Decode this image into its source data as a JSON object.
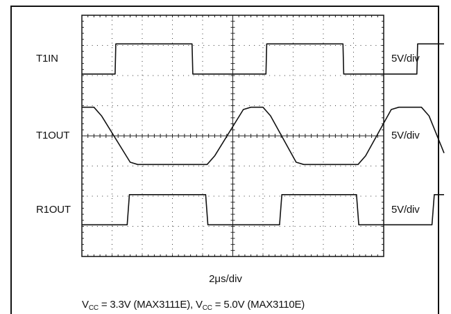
{
  "chart_data": {
    "type": "line",
    "title": "",
    "xlabel": "2μs/div",
    "ylabel": "",
    "grid": true,
    "x_divisions": 10,
    "y_divisions": 8,
    "x_unit": "μs",
    "us_per_div": 2,
    "channels": [
      {
        "name": "T1IN",
        "scale": "5V/div",
        "low_div": 6.05,
        "high_div": 7.05,
        "points": [
          [
            0,
            0
          ],
          [
            2.2,
            0
          ],
          [
            2.25,
            1
          ],
          [
            7.3,
            1
          ],
          [
            7.35,
            0
          ],
          [
            12.2,
            0
          ],
          [
            12.25,
            1
          ],
          [
            17.3,
            1
          ],
          [
            17.35,
            0
          ],
          [
            22.2,
            0
          ],
          [
            22.25,
            1
          ],
          [
            24,
            1
          ]
        ]
      },
      {
        "name": "T1OUT",
        "scale": "5V/div",
        "low_div": 3.05,
        "high_div": 4.95,
        "points": [
          [
            0,
            1
          ],
          [
            0.8,
            1
          ],
          [
            1.3,
            0.85
          ],
          [
            3.2,
            0.04
          ],
          [
            3.7,
            0
          ],
          [
            8.3,
            0
          ],
          [
            8.8,
            0.15
          ],
          [
            10.7,
            0.96
          ],
          [
            11.2,
            1
          ],
          [
            12.0,
            1
          ],
          [
            12.5,
            0.85
          ],
          [
            14.2,
            0.04
          ],
          [
            14.7,
            0
          ],
          [
            18.3,
            0
          ],
          [
            18.8,
            0.15
          ],
          [
            20.5,
            0.96
          ],
          [
            21.0,
            1
          ],
          [
            22.5,
            1
          ],
          [
            23.0,
            0.85
          ],
          [
            24,
            0.2
          ]
        ]
      },
      {
        "name": "R1OUT",
        "scale": "5V/div",
        "low_div": 1.05,
        "high_div": 2.05,
        "points": [
          [
            0,
            0
          ],
          [
            3.0,
            0
          ],
          [
            3.15,
            1
          ],
          [
            8.2,
            1
          ],
          [
            8.35,
            0
          ],
          [
            13.1,
            0
          ],
          [
            13.25,
            1
          ],
          [
            18.2,
            1
          ],
          [
            18.35,
            0
          ],
          [
            23.2,
            0
          ],
          [
            23.35,
            1
          ],
          [
            24,
            1
          ]
        ]
      }
    ],
    "timebase": "2μs/div",
    "conditions": {
      "v1_main": "V",
      "v1_sub": "CC",
      "v1_rest": " = 3.3V (MAX3111E), ",
      "v2_main": "V",
      "v2_sub": "CC",
      "v2_rest": " = 5.0V (MAX3110E)"
    }
  }
}
